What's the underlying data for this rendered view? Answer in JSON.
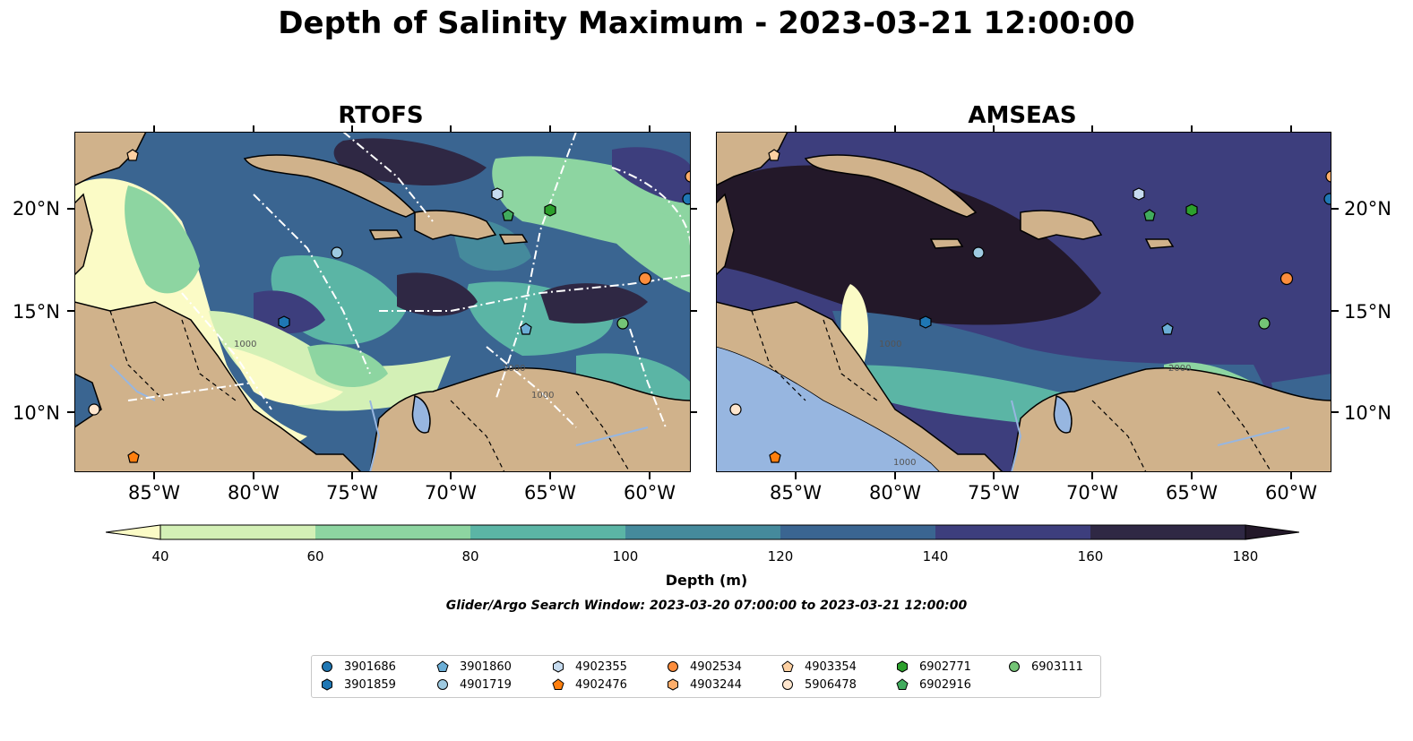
{
  "title": "Depth of Salinity Maximum - 2023-03-21 12:00:00",
  "panels": [
    {
      "title": "RTOFS"
    },
    {
      "title": "AMSEAS"
    }
  ],
  "lat_labels": [
    "20°N",
    "15°N",
    "10°N"
  ],
  "lon_labels": [
    "85°W",
    "80°W",
    "75°W",
    "70°W",
    "65°W",
    "60°W"
  ],
  "colorbar": {
    "ticks": [
      "40",
      "60",
      "80",
      "100",
      "120",
      "140",
      "160",
      "180"
    ],
    "label": "Depth (m)",
    "colors": [
      "#fbfbc6",
      "#d3f0b6",
      "#8dd5a1",
      "#5bb5a5",
      "#458a9c",
      "#3a6591",
      "#3d3e7d",
      "#2f2844",
      "#231829"
    ]
  },
  "search_window": "Glider/Argo Search Window: 2023-03-20 07:00:00 to 2023-03-21 12:00:00",
  "contour_labels": [
    "1000",
    "2000",
    "1000",
    "1000",
    "2000",
    "1000"
  ],
  "legend": [
    {
      "id": "3901686",
      "marker": "circle",
      "color": "#1f77b4"
    },
    {
      "id": "3901859",
      "marker": "hexagon",
      "color": "#1f77b4"
    },
    {
      "id": "3901860",
      "marker": "pentagon",
      "color": "#6baed6"
    },
    {
      "id": "4901719",
      "marker": "circle",
      "color": "#9ecae1"
    },
    {
      "id": "4902355",
      "marker": "hexagon",
      "color": "#c6dbef"
    },
    {
      "id": "4902476",
      "marker": "pentagon",
      "color": "#ff7f0e"
    },
    {
      "id": "4902534",
      "marker": "circle",
      "color": "#fd8d3c"
    },
    {
      "id": "4903244",
      "marker": "hexagon",
      "color": "#fdae6b"
    },
    {
      "id": "4903354",
      "marker": "pentagon",
      "color": "#fdd0a2"
    },
    {
      "id": "5906478",
      "marker": "circle",
      "color": "#fee6ce"
    },
    {
      "id": "6902771",
      "marker": "hexagon",
      "color": "#2ca02c"
    },
    {
      "id": "6902916",
      "marker": "pentagon",
      "color": "#41ab5d"
    },
    {
      "id": "6903111",
      "marker": "circle",
      "color": "#74c476"
    }
  ],
  "colors": {
    "land": "#d0b28b",
    "lake": "#97b6e0",
    "coast": "#000000"
  }
}
